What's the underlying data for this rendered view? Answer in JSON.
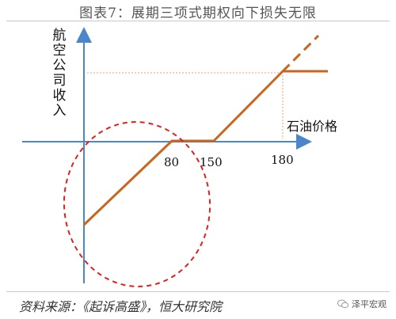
{
  "title": "图表7：展期三项式期权向下损失无限",
  "diagram": {
    "y_axis_label": "航空公司收入",
    "x_axis_label": "石油价格",
    "ticks": [
      "80",
      "150",
      "180"
    ],
    "colors": {
      "axis": "#4a86c8",
      "payoff": "#c8661f",
      "highlight_ellipse": "#e02020",
      "guide": "#e8a070"
    }
  },
  "footer": {
    "source": "资料来源：《起诉高盛》，恒大研究院",
    "brand": "泽平宏观",
    "brand_icon": "wechat-icon"
  }
}
